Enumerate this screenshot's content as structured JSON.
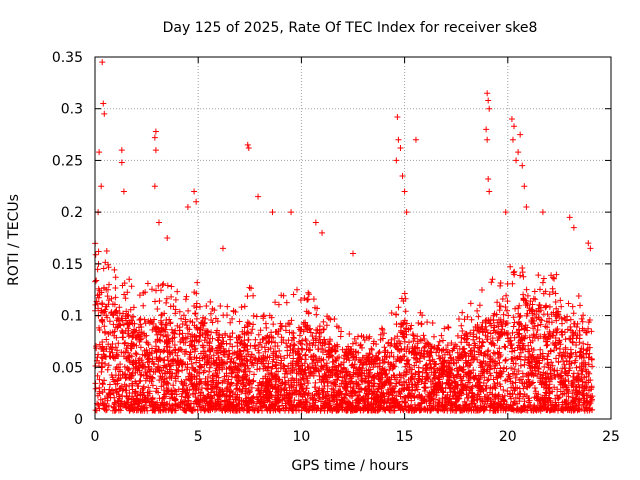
{
  "chart_data": {
    "type": "scatter",
    "title": "Day 125 of 2025, Rate Of TEC Index for receiver ske8",
    "xlabel": "GPS time / hours",
    "ylabel": "ROTI / TECUs",
    "xlim": [
      0,
      25
    ],
    "ylim": [
      0,
      0.35
    ],
    "x_ticks": [
      "0",
      "5",
      "10",
      "15",
      "20",
      "25"
    ],
    "y_ticks": [
      "0",
      "0.05",
      "0.1",
      "0.15",
      "0.2",
      "0.25",
      "0.3",
      "0.35"
    ],
    "grid": true,
    "marker": "+",
    "color": "#ff0000",
    "bulk_envelope": {
      "x": [
        0,
        0.5,
        1,
        1.5,
        2,
        2.5,
        3,
        3.5,
        4,
        4.5,
        5,
        5.5,
        6,
        6.5,
        7,
        7.5,
        8,
        8.5,
        9,
        9.5,
        10,
        10.5,
        11,
        11.5,
        12,
        12.5,
        13,
        13.5,
        14,
        14.5,
        15,
        15.5,
        16,
        16.5,
        17,
        17.5,
        18,
        18.5,
        19,
        19.5,
        20,
        20.5,
        21,
        21.5,
        22,
        22.5,
        23,
        23.5,
        24
      ],
      "upper": [
        0.17,
        0.16,
        0.15,
        0.13,
        0.12,
        0.12,
        0.13,
        0.12,
        0.12,
        0.12,
        0.13,
        0.11,
        0.1,
        0.1,
        0.1,
        0.12,
        0.1,
        0.1,
        0.11,
        0.11,
        0.12,
        0.11,
        0.1,
        0.09,
        0.08,
        0.08,
        0.07,
        0.07,
        0.08,
        0.1,
        0.12,
        0.1,
        0.09,
        0.08,
        0.08,
        0.09,
        0.1,
        0.11,
        0.12,
        0.13,
        0.14,
        0.14,
        0.15,
        0.14,
        0.13,
        0.13,
        0.12,
        0.11,
        0.1
      ]
    },
    "notable_points": [
      {
        "x": 0.35,
        "y": 0.345
      },
      {
        "x": 0.4,
        "y": 0.305
      },
      {
        "x": 0.45,
        "y": 0.295
      },
      {
        "x": 0.2,
        "y": 0.258
      },
      {
        "x": 0.3,
        "y": 0.225
      },
      {
        "x": 0.15,
        "y": 0.2
      },
      {
        "x": 1.3,
        "y": 0.26
      },
      {
        "x": 1.3,
        "y": 0.248
      },
      {
        "x": 1.4,
        "y": 0.22
      },
      {
        "x": 2.95,
        "y": 0.278
      },
      {
        "x": 2.9,
        "y": 0.272
      },
      {
        "x": 2.95,
        "y": 0.26
      },
      {
        "x": 2.9,
        "y": 0.225
      },
      {
        "x": 3.1,
        "y": 0.19
      },
      {
        "x": 3.5,
        "y": 0.175
      },
      {
        "x": 4.5,
        "y": 0.205
      },
      {
        "x": 4.8,
        "y": 0.22
      },
      {
        "x": 4.9,
        "y": 0.21
      },
      {
        "x": 6.2,
        "y": 0.165
      },
      {
        "x": 7.4,
        "y": 0.265
      },
      {
        "x": 7.45,
        "y": 0.262
      },
      {
        "x": 7.9,
        "y": 0.215
      },
      {
        "x": 8.6,
        "y": 0.2
      },
      {
        "x": 9.5,
        "y": 0.2
      },
      {
        "x": 10.7,
        "y": 0.19
      },
      {
        "x": 11.0,
        "y": 0.18
      },
      {
        "x": 12.5,
        "y": 0.16
      },
      {
        "x": 14.65,
        "y": 0.292
      },
      {
        "x": 14.7,
        "y": 0.27
      },
      {
        "x": 14.8,
        "y": 0.262
      },
      {
        "x": 14.6,
        "y": 0.25
      },
      {
        "x": 14.9,
        "y": 0.235
      },
      {
        "x": 15.0,
        "y": 0.22
      },
      {
        "x": 15.1,
        "y": 0.2
      },
      {
        "x": 15.55,
        "y": 0.27
      },
      {
        "x": 19.0,
        "y": 0.315
      },
      {
        "x": 19.05,
        "y": 0.308
      },
      {
        "x": 19.1,
        "y": 0.3
      },
      {
        "x": 18.95,
        "y": 0.28
      },
      {
        "x": 19.0,
        "y": 0.27
      },
      {
        "x": 19.05,
        "y": 0.232
      },
      {
        "x": 19.1,
        "y": 0.22
      },
      {
        "x": 19.9,
        "y": 0.2
      },
      {
        "x": 20.2,
        "y": 0.29
      },
      {
        "x": 20.3,
        "y": 0.283
      },
      {
        "x": 20.25,
        "y": 0.27
      },
      {
        "x": 20.6,
        "y": 0.275
      },
      {
        "x": 20.5,
        "y": 0.258
      },
      {
        "x": 20.4,
        "y": 0.25
      },
      {
        "x": 20.7,
        "y": 0.245
      },
      {
        "x": 20.8,
        "y": 0.225
      },
      {
        "x": 20.9,
        "y": 0.205
      },
      {
        "x": 21.7,
        "y": 0.2
      },
      {
        "x": 23.0,
        "y": 0.195
      },
      {
        "x": 23.2,
        "y": 0.185
      },
      {
        "x": 23.9,
        "y": 0.17
      },
      {
        "x": 24.0,
        "y": 0.165
      }
    ],
    "n_points_estimate": 5000
  }
}
